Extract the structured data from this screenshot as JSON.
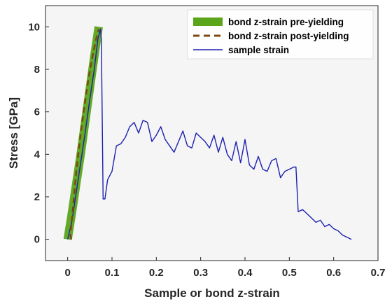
{
  "chart_data": {
    "type": "line",
    "xlabel": "Sample or bond z-strain",
    "ylabel": "Stress [GPa]",
    "xlim": [
      -0.05,
      0.7
    ],
    "ylim": [
      -1,
      11
    ],
    "xticks": [
      0,
      0.1,
      0.2,
      0.3,
      0.4,
      0.5,
      0.6,
      0.7
    ],
    "xtick_labels": [
      "0",
      "0.1",
      "0.2",
      "0.3",
      "0.4",
      "0.5",
      "0.6",
      "0.7"
    ],
    "yticks": [
      0,
      2,
      4,
      6,
      8,
      10
    ],
    "ytick_labels": [
      "0",
      "2",
      "4",
      "6",
      "8",
      "10"
    ],
    "grid": false,
    "legend_position": "top-right",
    "series": [
      {
        "name": "bond z-strain pre-yielding",
        "style": "thick-solid",
        "color": "#5aa51a",
        "x": [
          0.0,
          0.01,
          0.02,
          0.03,
          0.04,
          0.05,
          0.06,
          0.07
        ],
        "y": [
          0.0,
          1.3,
          2.7,
          4.1,
          5.6,
          7.1,
          8.6,
          10.0
        ]
      },
      {
        "name": "bond z-strain post-yielding",
        "style": "dashed",
        "color": "#7b4a12",
        "x": [
          0.008,
          0.006,
          0.012,
          0.018,
          0.025,
          0.032,
          0.04,
          0.048,
          0.056,
          0.064,
          0.07
        ],
        "y": [
          0.0,
          0.2,
          1.5,
          2.9,
          4.2,
          5.4,
          6.6,
          7.7,
          8.6,
          9.4,
          9.9
        ]
      },
      {
        "name": "sample strain",
        "style": "thin-solid",
        "color": "#1c20b0",
        "x": [
          0.0,
          0.01,
          0.02,
          0.03,
          0.04,
          0.05,
          0.06,
          0.068,
          0.074,
          0.076,
          0.08,
          0.084,
          0.09,
          0.1,
          0.11,
          0.12,
          0.13,
          0.14,
          0.15,
          0.16,
          0.17,
          0.18,
          0.19,
          0.2,
          0.21,
          0.22,
          0.23,
          0.24,
          0.25,
          0.26,
          0.27,
          0.28,
          0.29,
          0.3,
          0.31,
          0.32,
          0.33,
          0.34,
          0.35,
          0.36,
          0.37,
          0.38,
          0.39,
          0.4,
          0.41,
          0.42,
          0.43,
          0.44,
          0.45,
          0.46,
          0.47,
          0.48,
          0.49,
          0.5,
          0.51,
          0.515,
          0.52,
          0.53,
          0.54,
          0.55,
          0.56,
          0.57,
          0.58,
          0.59,
          0.6,
          0.61,
          0.62,
          0.63,
          0.64
        ],
        "y": [
          0.0,
          0.9,
          2.3,
          3.7,
          5.1,
          6.6,
          8.0,
          9.4,
          9.9,
          9.4,
          1.9,
          1.9,
          2.8,
          3.2,
          4.4,
          4.5,
          4.8,
          5.3,
          5.5,
          5.0,
          5.6,
          5.5,
          4.6,
          4.9,
          5.3,
          4.7,
          4.4,
          4.1,
          4.6,
          5.1,
          4.4,
          4.3,
          5.0,
          4.8,
          4.6,
          4.3,
          4.9,
          4.1,
          4.8,
          4.0,
          3.7,
          4.6,
          3.6,
          4.7,
          3.5,
          3.3,
          3.9,
          3.3,
          3.2,
          3.7,
          3.8,
          2.9,
          3.2,
          3.3,
          3.4,
          3.4,
          1.3,
          1.4,
          1.2,
          1.0,
          0.8,
          0.9,
          0.6,
          0.7,
          0.5,
          0.4,
          0.2,
          0.1,
          0.0
        ]
      }
    ]
  }
}
